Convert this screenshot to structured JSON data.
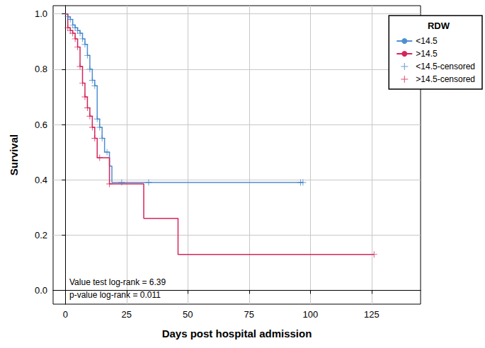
{
  "chart_data": {
    "type": "step",
    "x_label": "Days post hospital admission",
    "y_label": "Survival",
    "legend_title": "RDW",
    "legend": "upper right",
    "grid": true,
    "annotations": [
      "Value test log-rank = 6.39",
      "p-value log-rank = 0.011"
    ],
    "xlim": [
      -5,
      145
    ],
    "xticks": [
      0,
      25,
      50,
      75,
      100,
      125
    ],
    "ylim": [
      -0.05,
      1.03
    ],
    "yticks": [
      {
        "value": 0,
        "label": "0.0"
      },
      {
        "value": 0.2,
        "label": "0.2"
      },
      {
        "value": 0.4,
        "label": "0.4"
      },
      {
        "value": 0.6,
        "label": "0.6"
      },
      {
        "value": 0.8,
        "label": "0.8"
      },
      {
        "value": 1,
        "label": "1.0"
      }
    ],
    "series": [
      {
        "name": "<14.5",
        "type": "step",
        "color": "#4f8fd0",
        "x": [
          0,
          1,
          2,
          3,
          4,
          5,
          6,
          7,
          8,
          9,
          10,
          11,
          12,
          13,
          14,
          15,
          16,
          18,
          19,
          97
        ],
        "values": [
          1.0,
          0.99,
          0.98,
          0.96,
          0.95,
          0.94,
          0.93,
          0.91,
          0.89,
          0.85,
          0.8,
          0.76,
          0.74,
          0.62,
          0.59,
          0.55,
          0.5,
          0.45,
          0.39,
          0.39
        ]
      },
      {
        "name": ">14.5",
        "type": "step",
        "color": "#d6255a",
        "x": [
          0,
          1,
          2,
          3,
          4,
          5,
          6,
          7,
          8,
          9,
          10,
          11,
          12,
          13,
          18,
          32,
          46,
          126
        ],
        "values": [
          1.0,
          0.95,
          0.94,
          0.93,
          0.91,
          0.88,
          0.81,
          0.75,
          0.7,
          0.66,
          0.63,
          0.59,
          0.55,
          0.48,
          0.385,
          0.26,
          0.13,
          0.13
        ]
      },
      {
        "name": "<14.5-censored",
        "type": "scatter",
        "marker": "plus",
        "color": "#3f82c8",
        "x": [
          1,
          2,
          3,
          4,
          5,
          6,
          7,
          8,
          9,
          10,
          11,
          12,
          13,
          14,
          15,
          17,
          23,
          34,
          96,
          97
        ],
        "values": [
          0.99,
          0.98,
          0.96,
          0.95,
          0.94,
          0.93,
          0.91,
          0.89,
          0.85,
          0.8,
          0.76,
          0.74,
          0.62,
          0.59,
          0.55,
          0.5,
          0.39,
          0.39,
          0.39,
          0.39
        ]
      },
      {
        "name": ">14.5-censored",
        "type": "scatter",
        "marker": "plus",
        "color": "#d11f55",
        "x": [
          1,
          2,
          3,
          4,
          5,
          6,
          7,
          8,
          9,
          10,
          11,
          12,
          14,
          18,
          126
        ],
        "values": [
          0.95,
          0.94,
          0.93,
          0.91,
          0.88,
          0.81,
          0.75,
          0.7,
          0.66,
          0.63,
          0.59,
          0.55,
          0.48,
          0.385,
          0.13
        ]
      }
    ]
  }
}
